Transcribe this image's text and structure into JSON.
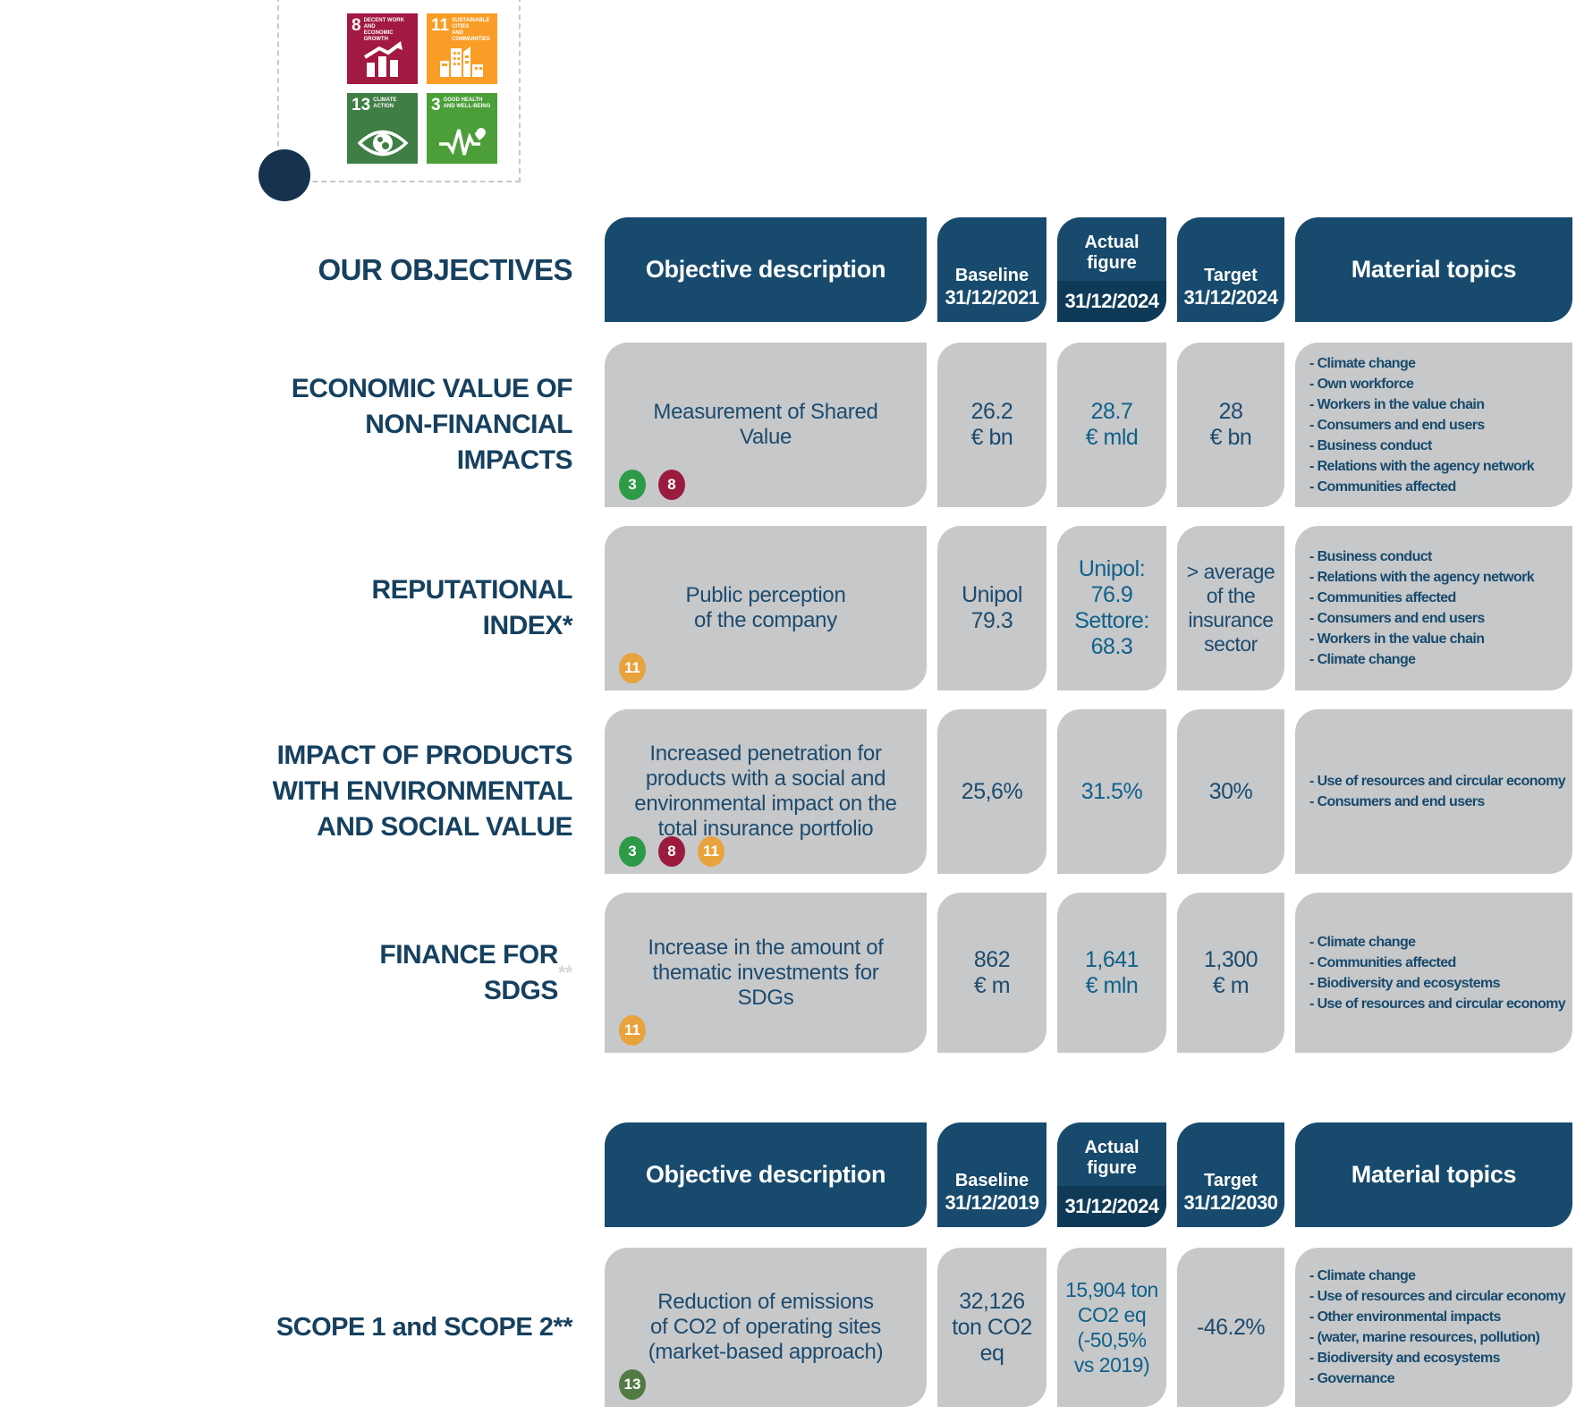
{
  "title": "OUR OBJECTIVES",
  "colors": {
    "header_navy": "#174A6C",
    "date_band_navy": "#0E3A58",
    "cell_gray": "#C7C8CA",
    "text_navy": "#1C4B6E",
    "actual_text_blue": "#10618A"
  },
  "sdg_tiles": [
    {
      "number": "8",
      "title": "DECENT WORK AND\nECONOMIC GROWTH",
      "color": "#A21942"
    },
    {
      "number": "11",
      "title": "SUSTAINABLE CITIES\nAND COMMUNITIES",
      "color": "#F99D26"
    },
    {
      "number": "13",
      "title": "CLIMATE\nACTION",
      "color": "#3F7E44"
    },
    {
      "number": "3",
      "title": "GOOD HEALTH\nAND WELL-BEING",
      "color": "#4C9F38"
    }
  ],
  "table1": {
    "headers": {
      "objective": "Objective description",
      "baseline_label": "Baseline",
      "baseline_date": "31/12/2021",
      "actual_label": "Actual\nfigure",
      "actual_date": "31/12/2024",
      "target_label": "Target",
      "target_date": "31/12/2024",
      "material": "Material topics"
    },
    "rows": [
      {
        "label": "ECONOMIC VALUE OF\nNON-FINANCIAL\nIMPACTS",
        "description": "Measurement of Shared\nValue",
        "badges": [
          {
            "n": "3",
            "color": "#2D9A47"
          },
          {
            "n": "8",
            "color": "#9A1B3F"
          }
        ],
        "baseline": "26.2\n€ bn",
        "actual": "28.7\n€ mld",
        "target": "28\n€ bn",
        "topics": "- Climate change\n- Own workforce\n- Workers in the value chain\n- Consumers and end users\n- Business conduct\n- Relations with the agency network\n- Communities affected"
      },
      {
        "label": "REPUTATIONAL\nINDEX*",
        "description": "Public perception\nof the company",
        "badges": [
          {
            "n": "11",
            "color": "#E8A33D"
          }
        ],
        "baseline": "Unipol\n79.3",
        "actual": "Unipol:\n76.9\nSettore:\n68.3",
        "target": "> average\nof the\ninsurance\nsector",
        "topics": "- Business conduct\n- Relations with the agency network\n- Communities affected\n- Consumers and end users\n- Workers in the value chain\n- Climate change"
      },
      {
        "label": "IMPACT OF PRODUCTS\nWITH ENVIRONMENTAL\nAND SOCIAL VALUE",
        "description": "Increased penetration for\nproducts with a social and\nenvironmental impact on the\ntotal insurance portfolio",
        "badges": [
          {
            "n": "3",
            "color": "#2D9A47"
          },
          {
            "n": "8",
            "color": "#9A1B3F"
          },
          {
            "n": "11",
            "color": "#E8A33D"
          }
        ],
        "baseline": "25,6%",
        "actual": "31.5%",
        "target": "30%",
        "topics": "- Use of resources and circular economy\n- Consumers and end users"
      },
      {
        "label": "FINANCE FOR\nSDGS",
        "label_note": "**",
        "description": "Increase in the amount of\nthematic investments for\nSDGs",
        "badges": [
          {
            "n": "11",
            "color": "#E8A33D"
          }
        ],
        "baseline": "862\n€ m",
        "actual": "1,641\n€ mln",
        "target": "1,300\n€ m",
        "topics": "- Climate change\n- Communities affected\n- Biodiversity and ecosystems\n- Use of resources and circular economy"
      }
    ]
  },
  "table2": {
    "headers": {
      "objective": "Objective description",
      "baseline_label": "Baseline",
      "baseline_date": "31/12/2019",
      "actual_label": "Actual\nfigure",
      "actual_date": "31/12/2024",
      "target_label": "Target",
      "target_date": "31/12/2030",
      "material": "Material topics"
    },
    "rows": [
      {
        "label": "SCOPE 1 and SCOPE 2**",
        "description": "Reduction of emissions\nof CO2 of operating sites\n(market-based approach)",
        "badges": [
          {
            "n": "13",
            "color": "#527A43"
          }
        ],
        "baseline": "32,126\nton CO2\neq",
        "actual": "15,904 ton\nCO2 eq\n(-50,5%\nvs 2019)",
        "target": "-46.2%",
        "topics": "- Climate change\n- Use of resources and circular economy\n- Other environmental impacts\n- (water, marine resources, pollution)\n- Biodiversity and ecosystems\n- Governance"
      }
    ]
  }
}
